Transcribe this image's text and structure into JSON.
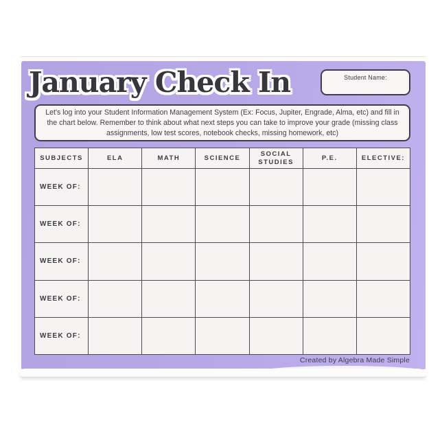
{
  "page": {
    "title": "January Check In",
    "footer_credit": "Created by Algebra Made Simple"
  },
  "student_name_box": {
    "label": "Student Name:",
    "value": ""
  },
  "instructions": {
    "lines": [
      "Let's log into your Student Information Management System (Ex: Focus, Jupiter, Engrade, Alma, etc) and fill in",
      "the chart below. Remember to think about what next steps you can take to improve your grade (missing class",
      "assignments, low test scores, notebook checks, missing homework, etc)"
    ]
  },
  "table": {
    "columns": [
      "SUBJECTS",
      "ELA",
      "MATH",
      "SCIENCE",
      "SOCIAL STUDIES",
      "P.E.",
      "ELECTIVE:"
    ],
    "rows": [
      {
        "label": "WEEK OF:",
        "cells": [
          "",
          "",
          "",
          "",
          "",
          ""
        ]
      },
      {
        "label": "WEEK OF:",
        "cells": [
          "",
          "",
          "",
          "",
          "",
          ""
        ]
      },
      {
        "label": "WEEK OF:",
        "cells": [
          "",
          "",
          "",
          "",
          "",
          ""
        ]
      },
      {
        "label": "WEEK OF:",
        "cells": [
          "",
          "",
          "",
          "",
          "",
          ""
        ]
      },
      {
        "label": "WEEK OF:",
        "cells": [
          "",
          "",
          "",
          "",
          "",
          ""
        ]
      }
    ]
  },
  "colors": {
    "sheet_purple": "#b7a8e8",
    "paper_fill": "#f5f4f2",
    "border_dark": "#403d49",
    "text_dark": "#3a383f"
  }
}
